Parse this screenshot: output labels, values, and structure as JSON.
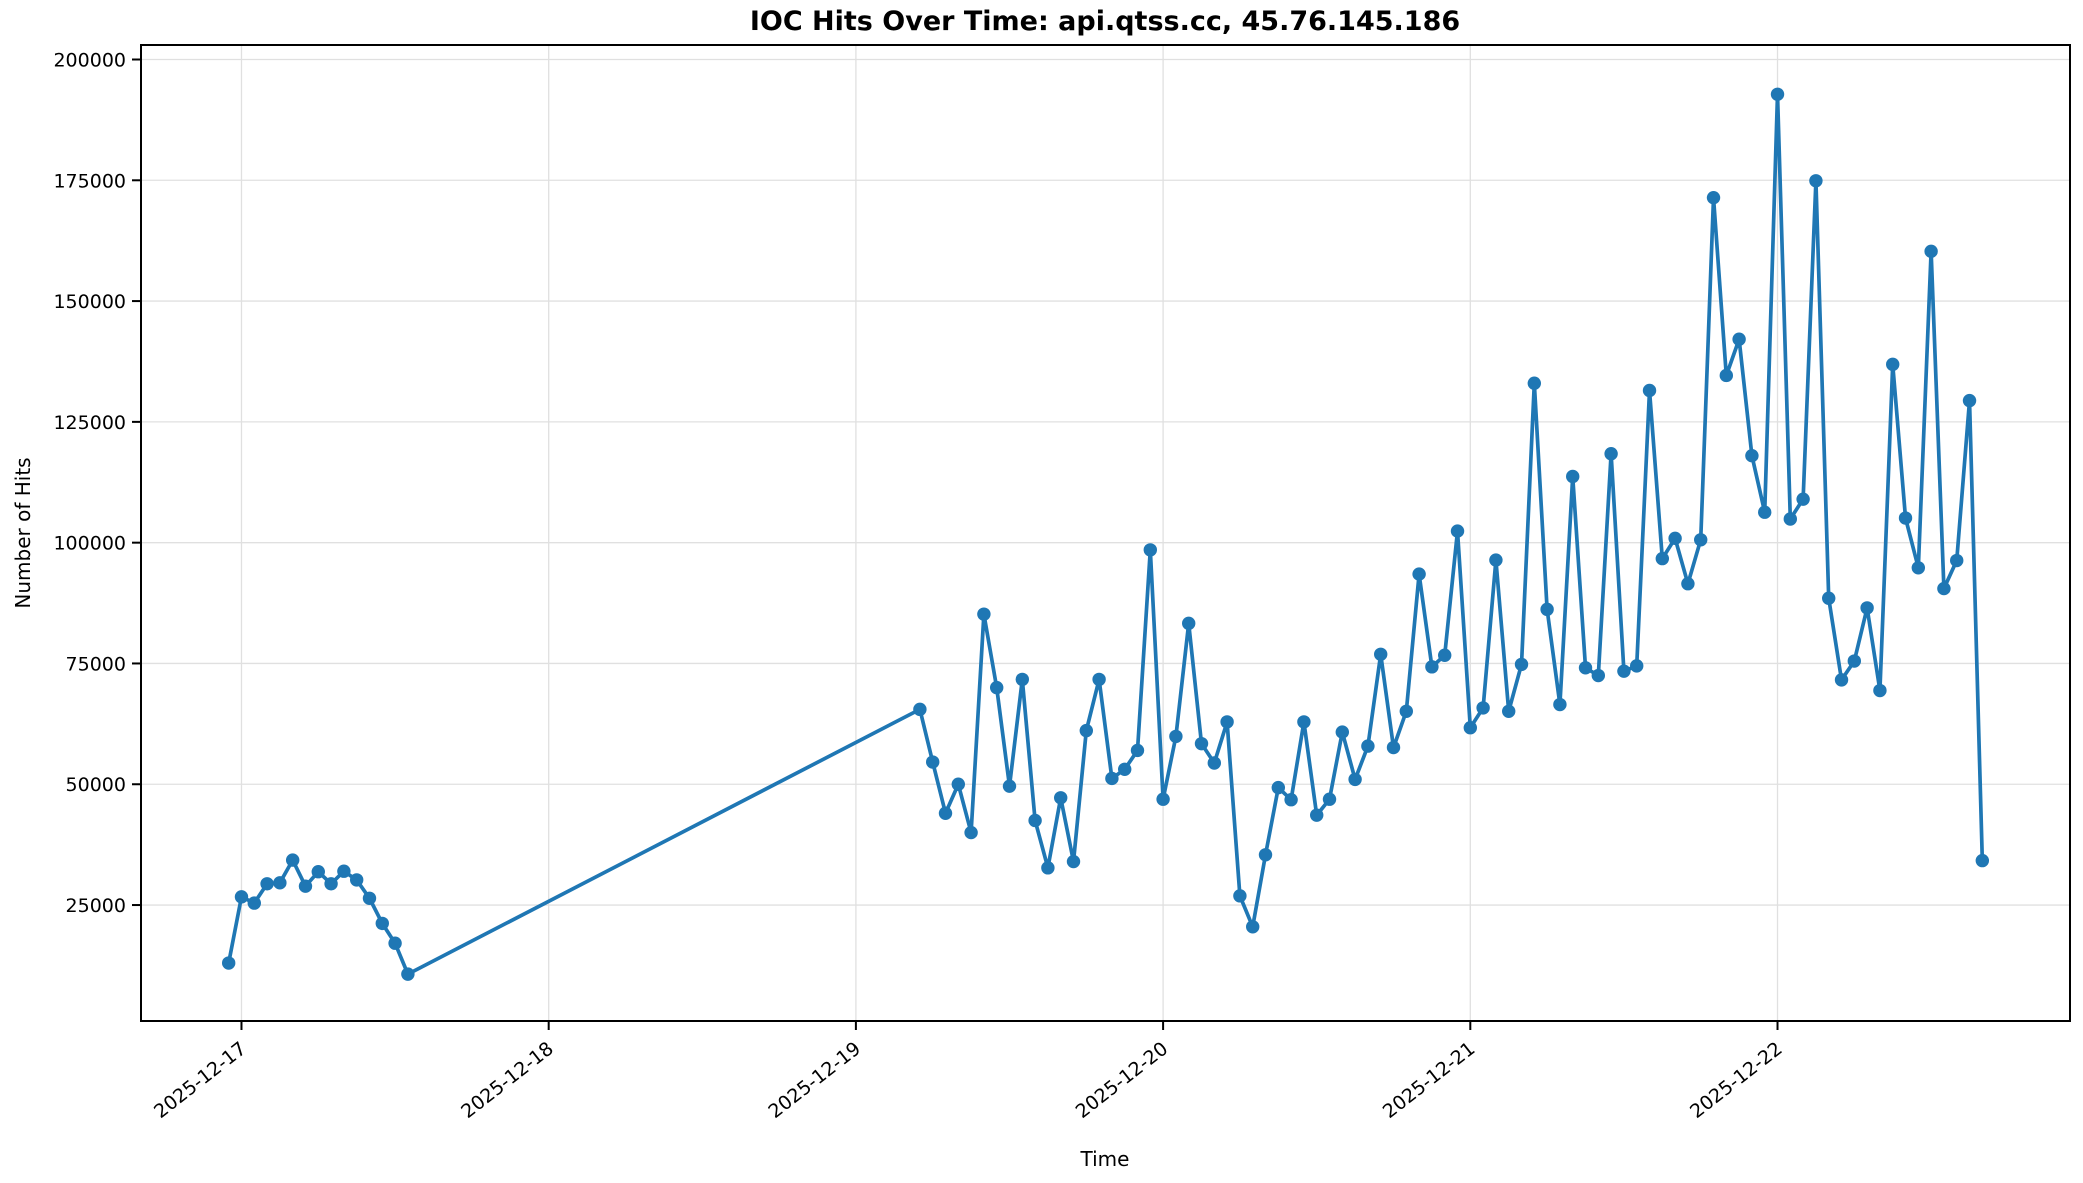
{
  "page": {
    "background": "#ffffff"
  },
  "chart_data": {
    "type": "line",
    "title": "IOC Hits Over Time: api.qtss.cc, 45.76.145.186",
    "xlabel": "Time",
    "ylabel": "Number of Hits",
    "grid": true,
    "legend_position": "none",
    "line_color": "#1f77b4",
    "grid_color": "#e0e0e0",
    "spine_color": "#000000",
    "x_tick_labels": [
      "2025-12-17",
      "2025-12-18",
      "2025-12-19",
      "2025-12-20",
      "2025-12-21",
      "2025-12-22"
    ],
    "x_tick_hours": [
      0,
      24,
      48,
      72,
      96,
      120
    ],
    "y_ticks": [
      25000,
      50000,
      75000,
      100000,
      125000,
      150000,
      175000,
      200000
    ],
    "ylim": [
      1000,
      203000
    ],
    "xlim_hours": [
      -7.85,
      142.85
    ],
    "time_origin": "2025-12-17 00:00",
    "points": [
      [
        "2025-12-16 23:00",
        13000
      ],
      [
        "2025-12-17 00:00",
        26700
      ],
      [
        "2025-12-17 01:00",
        25400
      ],
      [
        "2025-12-17 02:00",
        29400
      ],
      [
        "2025-12-17 03:00",
        29600
      ],
      [
        "2025-12-17 04:00",
        34300
      ],
      [
        "2025-12-17 05:00",
        28900
      ],
      [
        "2025-12-17 06:00",
        31900
      ],
      [
        "2025-12-17 07:00",
        29400
      ],
      [
        "2025-12-17 08:00",
        32000
      ],
      [
        "2025-12-17 09:00",
        30200
      ],
      [
        "2025-12-17 10:00",
        26400
      ],
      [
        "2025-12-17 11:00",
        21200
      ],
      [
        "2025-12-17 12:00",
        17100
      ],
      [
        "2025-12-17 13:00",
        10700
      ],
      [
        "2025-12-19 05:00",
        65500
      ],
      [
        "2025-12-19 06:00",
        54600
      ],
      [
        "2025-12-19 07:00",
        44000
      ],
      [
        "2025-12-19 08:00",
        50000
      ],
      [
        "2025-12-19 09:00",
        40000
      ],
      [
        "2025-12-19 10:00",
        85200
      ],
      [
        "2025-12-19 11:00",
        70000
      ],
      [
        "2025-12-19 12:00",
        49600
      ],
      [
        "2025-12-19 13:00",
        71700
      ],
      [
        "2025-12-19 14:00",
        42500
      ],
      [
        "2025-12-19 15:00",
        32700
      ],
      [
        "2025-12-19 16:00",
        47200
      ],
      [
        "2025-12-19 17:00",
        34000
      ],
      [
        "2025-12-19 18:00",
        61100
      ],
      [
        "2025-12-19 19:00",
        71700
      ],
      [
        "2025-12-19 20:00",
        51200
      ],
      [
        "2025-12-19 21:00",
        53100
      ],
      [
        "2025-12-19 22:00",
        57000
      ],
      [
        "2025-12-19 23:00",
        98500
      ],
      [
        "2025-12-20 00:00",
        46900
      ],
      [
        "2025-12-20 01:00",
        59900
      ],
      [
        "2025-12-20 02:00",
        83300
      ],
      [
        "2025-12-20 03:00",
        58400
      ],
      [
        "2025-12-20 04:00",
        54400
      ],
      [
        "2025-12-20 05:00",
        62900
      ],
      [
        "2025-12-20 06:00",
        26900
      ],
      [
        "2025-12-20 07:00",
        20500
      ],
      [
        "2025-12-20 08:00",
        35400
      ],
      [
        "2025-12-20 09:00",
        49300
      ],
      [
        "2025-12-20 10:00",
        46800
      ],
      [
        "2025-12-20 11:00",
        62900
      ],
      [
        "2025-12-20 12:00",
        43600
      ],
      [
        "2025-12-20 13:00",
        46900
      ],
      [
        "2025-12-20 14:00",
        60800
      ],
      [
        "2025-12-20 15:00",
        51000
      ],
      [
        "2025-12-20 16:00",
        57900
      ],
      [
        "2025-12-20 17:00",
        76900
      ],
      [
        "2025-12-20 18:00",
        57600
      ],
      [
        "2025-12-20 19:00",
        65100
      ],
      [
        "2025-12-20 20:00",
        93500
      ],
      [
        "2025-12-20 21:00",
        74300
      ],
      [
        "2025-12-20 22:00",
        76700
      ],
      [
        "2025-12-20 23:00",
        102400
      ],
      [
        "2025-12-21 00:00",
        61700
      ],
      [
        "2025-12-21 01:00",
        65800
      ],
      [
        "2025-12-21 02:00",
        96400
      ],
      [
        "2025-12-21 03:00",
        65100
      ],
      [
        "2025-12-21 04:00",
        74800
      ],
      [
        "2025-12-21 05:00",
        133000
      ],
      [
        "2025-12-21 06:00",
        86200
      ],
      [
        "2025-12-21 07:00",
        66500
      ],
      [
        "2025-12-21 08:00",
        113700
      ],
      [
        "2025-12-21 09:00",
        74100
      ],
      [
        "2025-12-21 10:00",
        72500
      ],
      [
        "2025-12-21 11:00",
        118400
      ],
      [
        "2025-12-21 12:00",
        73400
      ],
      [
        "2025-12-21 13:00",
        74500
      ],
      [
        "2025-12-21 14:00",
        131500
      ],
      [
        "2025-12-21 15:00",
        96700
      ],
      [
        "2025-12-21 16:00",
        100900
      ],
      [
        "2025-12-21 17:00",
        91500
      ],
      [
        "2025-12-21 18:00",
        100600
      ],
      [
        "2025-12-21 19:00",
        171400
      ],
      [
        "2025-12-21 20:00",
        134600
      ],
      [
        "2025-12-21 21:00",
        142100
      ],
      [
        "2025-12-21 22:00",
        118000
      ],
      [
        "2025-12-21 23:00",
        106300
      ],
      [
        "2025-12-22 00:00",
        192800
      ],
      [
        "2025-12-22 01:00",
        104900
      ],
      [
        "2025-12-22 02:00",
        109000
      ],
      [
        "2025-12-22 03:00",
        174900
      ],
      [
        "2025-12-22 04:00",
        88500
      ],
      [
        "2025-12-22 05:00",
        71600
      ],
      [
        "2025-12-22 06:00",
        75500
      ],
      [
        "2025-12-22 07:00",
        86500
      ],
      [
        "2025-12-22 08:00",
        69400
      ],
      [
        "2025-12-22 09:00",
        136900
      ],
      [
        "2025-12-22 10:00",
        105100
      ],
      [
        "2025-12-22 11:00",
        94800
      ],
      [
        "2025-12-22 12:00",
        160300
      ],
      [
        "2025-12-22 13:00",
        90500
      ],
      [
        "2025-12-22 14:00",
        96300
      ],
      [
        "2025-12-22 15:00",
        129400
      ],
      [
        "2025-12-22 16:00",
        34200
      ]
    ]
  }
}
